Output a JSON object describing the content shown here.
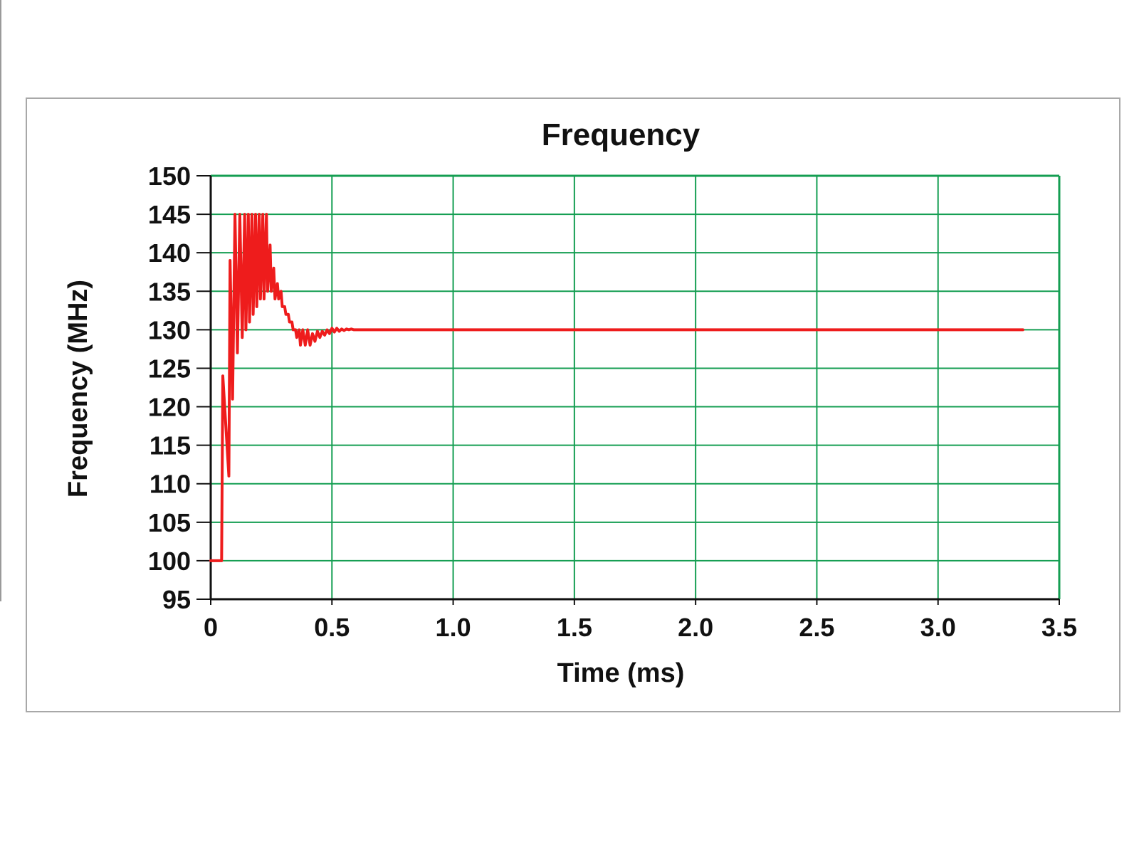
{
  "chart_data": {
    "type": "line",
    "title": "Frequency",
    "xlabel": "Time (ms)",
    "ylabel": "Frequency (MHz)",
    "xlim": [
      0,
      3.5
    ],
    "ylim": [
      95,
      150
    ],
    "x_ticks": [
      "0",
      "0.5",
      "1.0",
      "1.5",
      "2.0",
      "2.5",
      "3.0",
      "3.5"
    ],
    "x_tick_values": [
      0,
      0.5,
      1.0,
      1.5,
      2.0,
      2.5,
      3.0,
      3.5
    ],
    "y_ticks": [
      "150",
      "145",
      "140",
      "135",
      "130",
      "125",
      "120",
      "115",
      "110",
      "105",
      "100",
      "95"
    ],
    "y_tick_values": [
      150,
      145,
      140,
      135,
      130,
      125,
      120,
      115,
      110,
      105,
      100,
      95
    ],
    "grid": true,
    "series": [
      {
        "color": "#ee1c1c",
        "x": [
          0,
          0.04,
          0.045,
          0.05,
          0.075,
          0.08,
          0.09,
          0.1,
          0.11,
          0.12,
          0.13,
          0.14,
          0.145,
          0.155,
          0.16,
          0.17,
          0.175,
          0.185,
          0.19,
          0.2,
          0.205,
          0.215,
          0.22,
          0.23,
          0.235,
          0.245,
          0.25,
          0.26,
          0.265,
          0.275,
          0.28,
          0.29,
          0.295,
          0.305,
          0.31,
          0.32,
          0.325,
          0.335,
          0.34,
          0.35,
          0.355,
          0.365,
          0.37,
          0.38,
          0.39,
          0.4,
          0.41,
          0.42,
          0.43,
          0.44,
          0.45,
          0.46,
          0.47,
          0.48,
          0.49,
          0.5,
          0.51,
          0.52,
          0.53,
          0.54,
          0.55,
          0.56,
          0.57,
          0.58,
          0.59,
          0.6,
          0.62,
          0.64,
          0.66,
          0.68,
          0.7,
          0.72,
          0.74,
          0.76,
          0.78,
          0.8,
          0.85,
          0.9,
          0.95,
          1.0,
          1.5,
          2.0,
          2.5,
          3.0,
          3.35
        ],
        "y": [
          100,
          100,
          100,
          124,
          111,
          139,
          121,
          145,
          127,
          145,
          129,
          145,
          130,
          145,
          131,
          145,
          132,
          145,
          133,
          145,
          134,
          145,
          134,
          145,
          135,
          141,
          135,
          138,
          134,
          136,
          134,
          135,
          133,
          133,
          132,
          132,
          131,
          131,
          130,
          130,
          129,
          130,
          128,
          130,
          128,
          130,
          128,
          129.5,
          128.5,
          129.8,
          129,
          129.8,
          129.3,
          130,
          129.5,
          130.2,
          129.7,
          130.2,
          129.8,
          130.1,
          129.9,
          130.1,
          130,
          130.1,
          130,
          130,
          130,
          130,
          130,
          130,
          130,
          130,
          130,
          130,
          130,
          130,
          130,
          130,
          130,
          130,
          130,
          130,
          130,
          130,
          130
        ]
      }
    ]
  }
}
